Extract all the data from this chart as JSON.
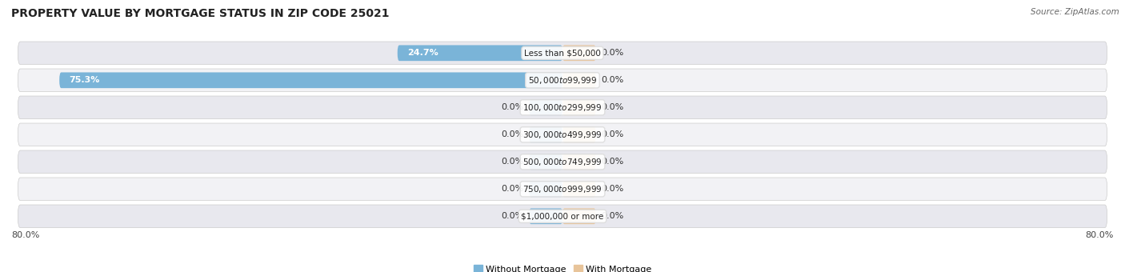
{
  "title": "PROPERTY VALUE BY MORTGAGE STATUS IN ZIP CODE 25021",
  "source": "Source: ZipAtlas.com",
  "categories": [
    "Less than $50,000",
    "$50,000 to $99,999",
    "$100,000 to $299,999",
    "$300,000 to $499,999",
    "$500,000 to $749,999",
    "$750,000 to $999,999",
    "$1,000,000 or more"
  ],
  "without_mortgage": [
    24.7,
    75.3,
    0.0,
    0.0,
    0.0,
    0.0,
    0.0
  ],
  "with_mortgage": [
    0.0,
    0.0,
    0.0,
    0.0,
    0.0,
    0.0,
    0.0
  ],
  "without_mortgage_color": "#7ab4d8",
  "with_mortgage_color": "#e8c49a",
  "row_bg_color_light": "#f2f2f5",
  "row_bg_color_dark": "#e8e8ee",
  "axis_limit": 80.0,
  "stub_size": 5.0,
  "legend_without": "Without Mortgage",
  "legend_with": "With Mortgage",
  "title_fontsize": 10,
  "label_fontsize": 8,
  "category_fontsize": 7.5,
  "source_fontsize": 7.5
}
